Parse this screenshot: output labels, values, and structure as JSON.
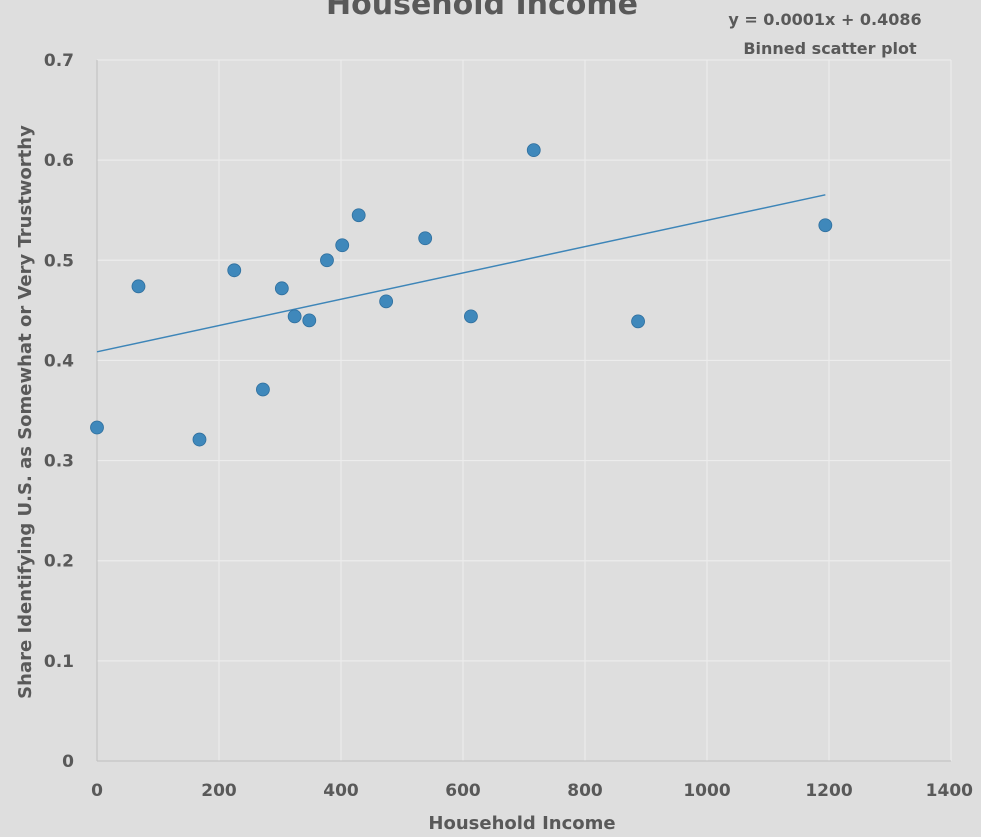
{
  "chart_data": {
    "type": "scatter",
    "title": "Household Income",
    "annotations": [
      "y = 0.0001x + 0.4086",
      "Binned scatter plot"
    ],
    "xlabel": "Household Income",
    "ylabel": "Share Identifying U.S. as Somewhat or Very Trustworthy",
    "xlim": [
      0,
      1400
    ],
    "ylim": [
      0,
      0.7
    ],
    "xticks": [
      "0",
      "200",
      "400",
      "600",
      "800",
      "1000",
      "1200",
      "1400"
    ],
    "yticks": [
      "0",
      "0.1",
      "0.2",
      "0.3",
      "0.4",
      "0.5",
      "0.6",
      "0.7"
    ],
    "grid": true,
    "series": [
      {
        "points": [
          {
            "x": 0,
            "y": 0.333
          },
          {
            "x": 68,
            "y": 0.474
          },
          {
            "x": 168,
            "y": 0.321
          },
          {
            "x": 225,
            "y": 0.49
          },
          {
            "x": 272,
            "y": 0.371
          },
          {
            "x": 303,
            "y": 0.472
          },
          {
            "x": 324,
            "y": 0.444
          },
          {
            "x": 348,
            "y": 0.44
          },
          {
            "x": 377,
            "y": 0.5
          },
          {
            "x": 402,
            "y": 0.515
          },
          {
            "x": 429,
            "y": 0.545
          },
          {
            "x": 474,
            "y": 0.459
          },
          {
            "x": 538,
            "y": 0.522
          },
          {
            "x": 613,
            "y": 0.444
          },
          {
            "x": 716,
            "y": 0.61
          },
          {
            "x": 887,
            "y": 0.439
          },
          {
            "x": 1194,
            "y": 0.535
          }
        ]
      }
    ],
    "trendline": {
      "slope": 0.0001313,
      "intercept": 0.4086,
      "x_range": [
        0,
        1194
      ]
    },
    "colors": {
      "marker": "#3f88bb",
      "trendline": "#3d85b8",
      "background": "#dedede",
      "text": "#595959"
    }
  }
}
